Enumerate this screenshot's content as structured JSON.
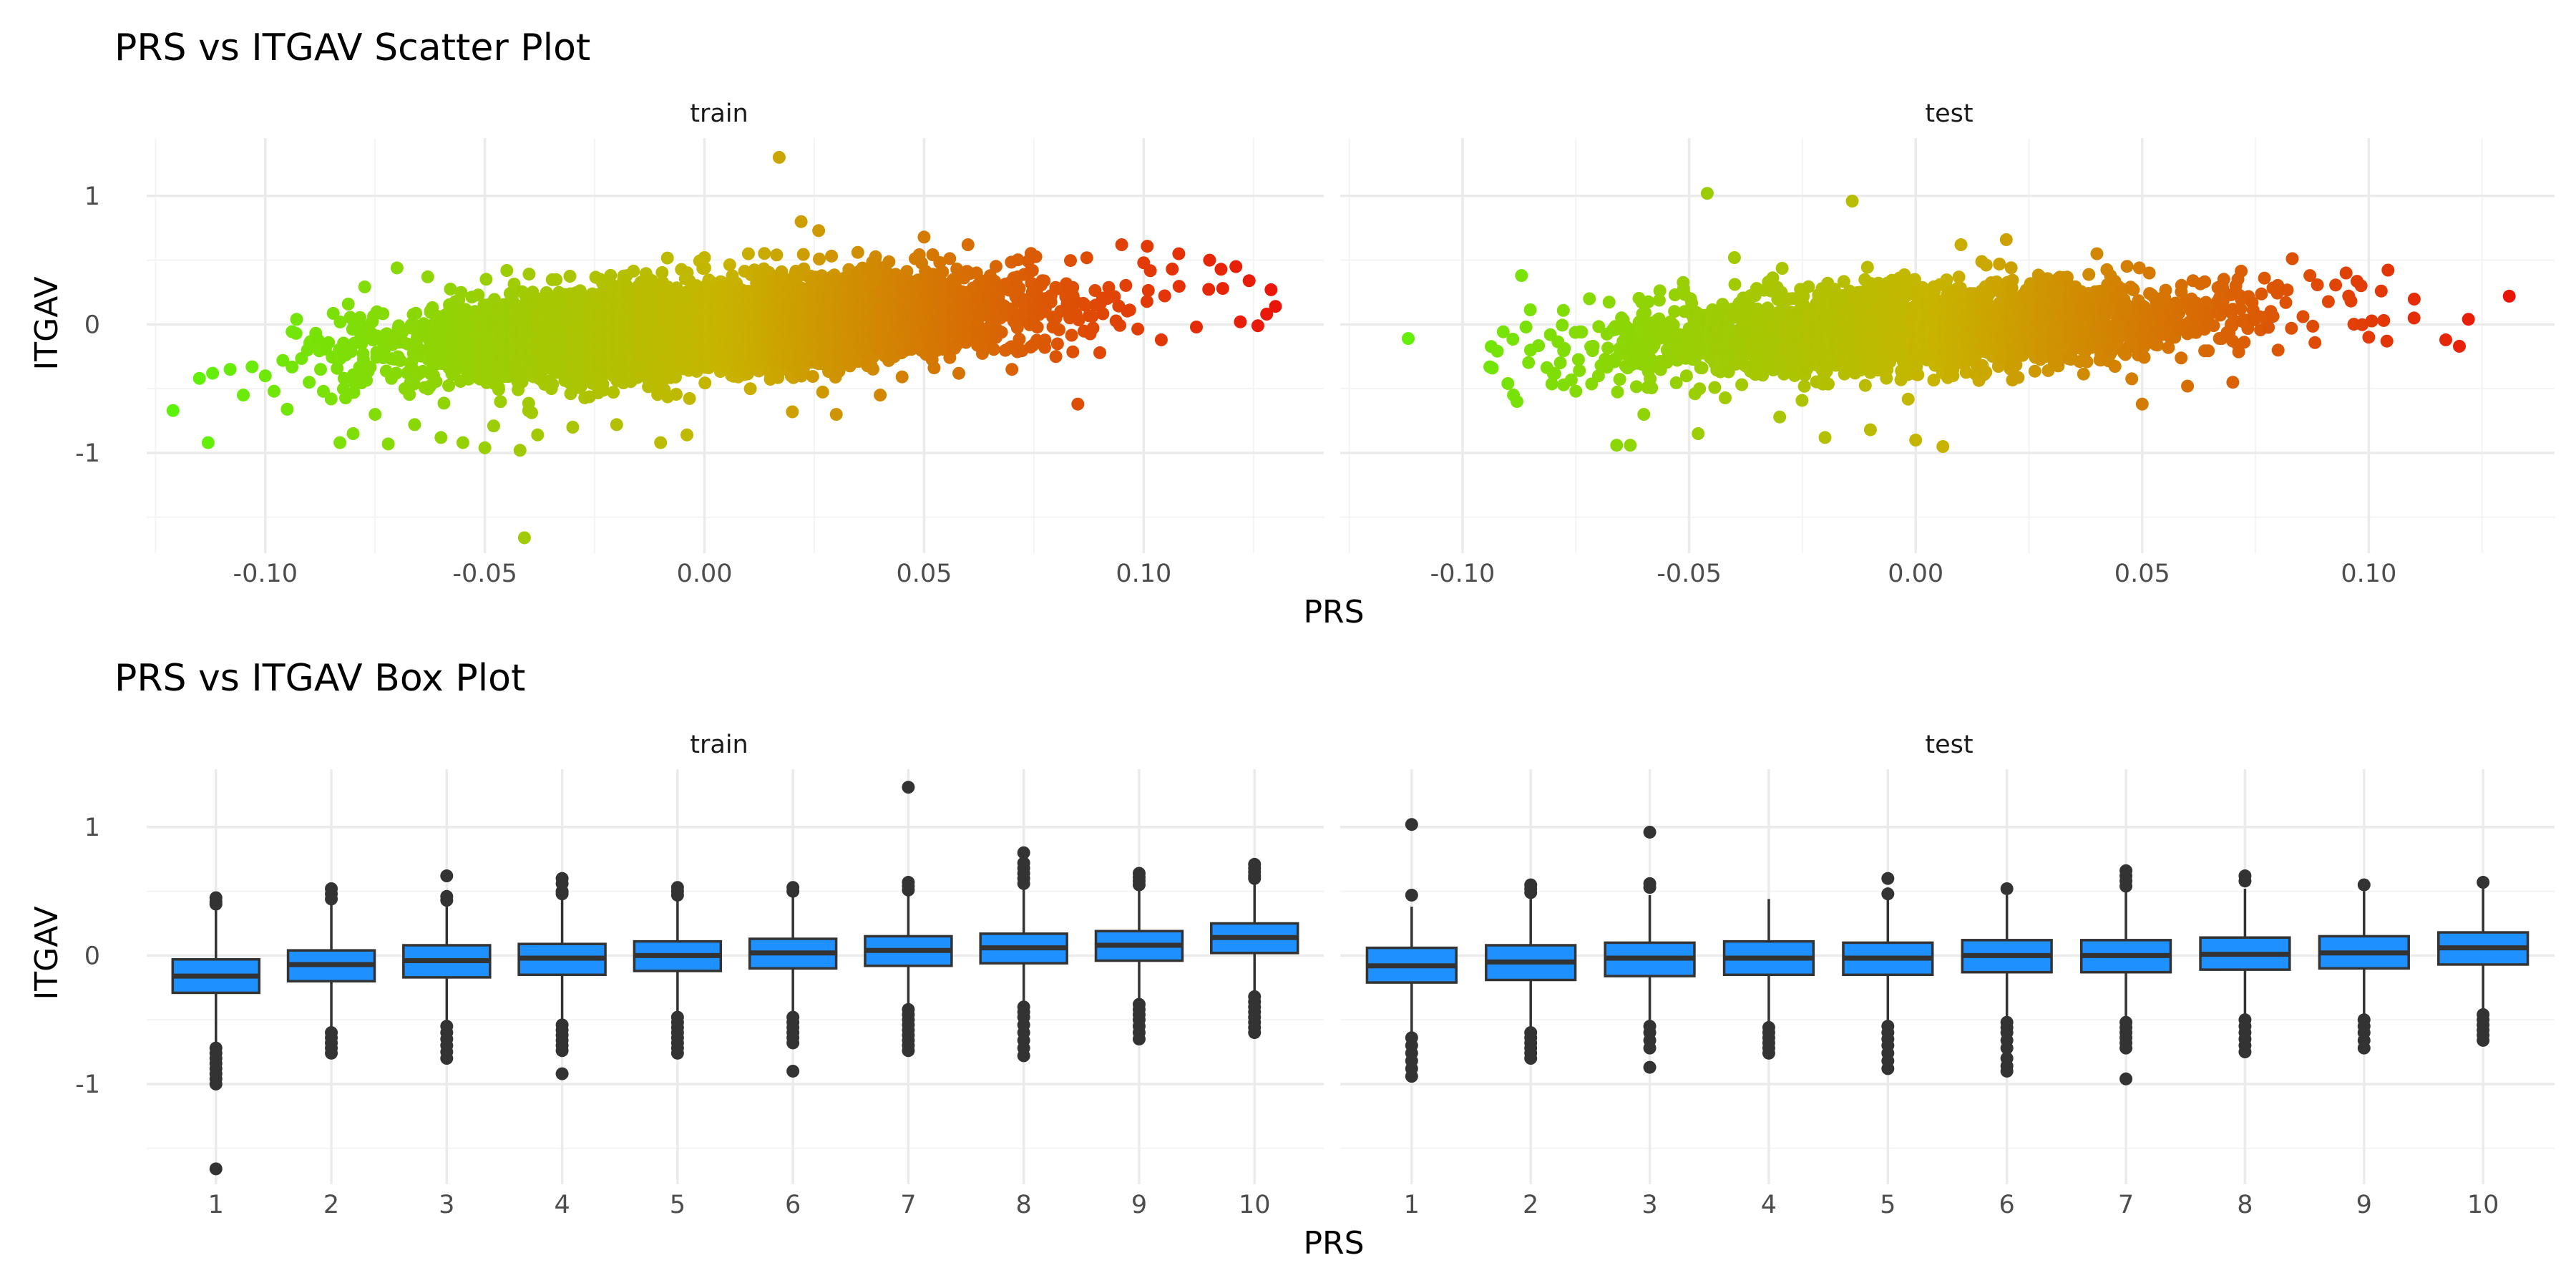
{
  "colors": {
    "low": "#5df20a",
    "mid": "#c8b400",
    "high": "#ea1509",
    "box_fill": "#1e90ff",
    "box_line": "#333333"
  },
  "chart_data": [
    {
      "type": "scatter",
      "title": "PRS vs ITGAV Scatter Plot",
      "xlabel": "PRS",
      "ylabel": "ITGAV",
      "xlim": [
        -0.127,
        0.141
      ],
      "ylim": [
        -1.78,
        1.45
      ],
      "xticks": [
        -0.1,
        -0.05,
        0.0,
        0.05,
        0.1
      ],
      "xtick_labels": [
        "-0.10",
        "-0.05",
        "0.00",
        "0.05",
        "0.10"
      ],
      "yticks": [
        -1,
        0,
        1
      ],
      "ytick_labels": [
        "-1",
        "0",
        "1"
      ],
      "color_by": "x",
      "color_range": [
        -0.12,
        0.13
      ],
      "grid": true,
      "legend": "none",
      "facets": [
        {
          "name": "train",
          "trend": {
            "slope": 2.4,
            "intercept": -0.02,
            "spread": 0.17,
            "xmean": 0.0,
            "xsd": 0.034
          },
          "points": [
            {
              "x": -0.121,
              "y": -0.67
            },
            {
              "x": -0.113,
              "y": -0.92
            },
            {
              "x": -0.115,
              "y": -0.42
            },
            {
              "x": -0.112,
              "y": -0.38
            },
            {
              "x": -0.108,
              "y": -0.35
            },
            {
              "x": -0.105,
              "y": -0.55
            },
            {
              "x": -0.103,
              "y": -0.33
            },
            {
              "x": -0.1,
              "y": -0.4
            },
            {
              "x": -0.098,
              "y": -0.52
            },
            {
              "x": -0.096,
              "y": -0.28
            },
            {
              "x": -0.095,
              "y": -0.66
            },
            {
              "x": -0.093,
              "y": -0.07
            },
            {
              "x": -0.09,
              "y": -0.45
            },
            {
              "x": -0.088,
              "y": -0.12
            },
            {
              "x": -0.085,
              "y": -0.58
            },
            {
              "x": -0.083,
              "y": -0.92
            },
            {
              "x": -0.08,
              "y": -0.85
            },
            {
              "x": -0.078,
              "y": -0.1
            },
            {
              "x": -0.075,
              "y": -0.7
            },
            {
              "x": -0.072,
              "y": -0.93
            },
            {
              "x": -0.07,
              "y": 0.44
            },
            {
              "x": -0.066,
              "y": -0.78
            },
            {
              "x": -0.063,
              "y": 0.37
            },
            {
              "x": -0.06,
              "y": -0.88
            },
            {
              "x": -0.058,
              "y": 0.12
            },
            {
              "x": -0.055,
              "y": -0.92
            },
            {
              "x": -0.05,
              "y": -0.96
            },
            {
              "x": -0.048,
              "y": -0.79
            },
            {
              "x": -0.045,
              "y": 0.42
            },
            {
              "x": -0.042,
              "y": -0.98
            },
            {
              "x": -0.041,
              "y": -1.66
            },
            {
              "x": -0.038,
              "y": -0.86
            },
            {
              "x": -0.03,
              "y": -0.8
            },
            {
              "x": -0.02,
              "y": -0.78
            },
            {
              "x": -0.01,
              "y": -0.92
            },
            {
              "x": -0.004,
              "y": -0.86
            },
            {
              "x": 0.0,
              "y": 0.52
            },
            {
              "x": 0.01,
              "y": 0.55
            },
            {
              "x": 0.017,
              "y": 1.3
            },
            {
              "x": 0.02,
              "y": -0.68
            },
            {
              "x": 0.022,
              "y": 0.8
            },
            {
              "x": 0.026,
              "y": 0.73
            },
            {
              "x": 0.03,
              "y": -0.7
            },
            {
              "x": 0.04,
              "y": -0.55
            },
            {
              "x": 0.05,
              "y": 0.68
            },
            {
              "x": 0.06,
              "y": 0.62
            },
            {
              "x": 0.07,
              "y": -0.35
            },
            {
              "x": 0.08,
              "y": -0.25
            },
            {
              "x": 0.085,
              "y": -0.62
            },
            {
              "x": 0.09,
              "y": -0.22
            },
            {
              "x": 0.095,
              "y": 0.62
            },
            {
              "x": 0.1,
              "y": 0.48
            },
            {
              "x": 0.104,
              "y": -0.12
            },
            {
              "x": 0.108,
              "y": 0.55
            },
            {
              "x": 0.112,
              "y": -0.02
            },
            {
              "x": 0.115,
              "y": 0.5
            },
            {
              "x": 0.118,
              "y": 0.28
            },
            {
              "x": 0.121,
              "y": 0.45
            },
            {
              "x": 0.122,
              "y": 0.02
            },
            {
              "x": 0.124,
              "y": 0.34
            },
            {
              "x": 0.126,
              "y": -0.01
            },
            {
              "x": 0.128,
              "y": 0.08
            },
            {
              "x": 0.129,
              "y": 0.27
            },
            {
              "x": 0.13,
              "y": 0.14
            }
          ]
        },
        {
          "name": "test",
          "trend": {
            "slope": 1.7,
            "intercept": -0.03,
            "spread": 0.16,
            "xmean": 0.0,
            "xsd": 0.033
          },
          "points": [
            {
              "x": -0.112,
              "y": -0.11
            },
            {
              "x": -0.094,
              "y": -0.33
            },
            {
              "x": -0.09,
              "y": -0.46
            },
            {
              "x": -0.088,
              "y": -0.6
            },
            {
              "x": -0.087,
              "y": 0.38
            },
            {
              "x": -0.086,
              "y": -0.02
            },
            {
              "x": -0.085,
              "y": -0.2
            },
            {
              "x": -0.08,
              "y": -0.38
            },
            {
              "x": -0.075,
              "y": -0.52
            },
            {
              "x": -0.072,
              "y": 0.2
            },
            {
              "x": -0.07,
              "y": -0.4
            },
            {
              "x": -0.066,
              "y": -0.94
            },
            {
              "x": -0.063,
              "y": -0.94
            },
            {
              "x": -0.06,
              "y": -0.7
            },
            {
              "x": -0.048,
              "y": -0.85
            },
            {
              "x": -0.046,
              "y": 1.02
            },
            {
              "x": -0.04,
              "y": 0.52
            },
            {
              "x": -0.03,
              "y": -0.72
            },
            {
              "x": -0.02,
              "y": -0.88
            },
            {
              "x": -0.014,
              "y": 0.96
            },
            {
              "x": -0.01,
              "y": -0.82
            },
            {
              "x": 0.0,
              "y": -0.9
            },
            {
              "x": 0.006,
              "y": -0.95
            },
            {
              "x": 0.01,
              "y": 0.62
            },
            {
              "x": 0.02,
              "y": 0.66
            },
            {
              "x": 0.04,
              "y": 0.55
            },
            {
              "x": 0.05,
              "y": -0.62
            },
            {
              "x": 0.06,
              "y": -0.48
            },
            {
              "x": 0.07,
              "y": -0.45
            },
            {
              "x": 0.08,
              "y": -0.2
            },
            {
              "x": 0.087,
              "y": 0.38
            },
            {
              "x": 0.095,
              "y": 0.4
            },
            {
              "x": 0.1,
              "y": -0.1
            },
            {
              "x": 0.104,
              "y": -0.13
            },
            {
              "x": 0.11,
              "y": 0.05
            },
            {
              "x": 0.117,
              "y": -0.12
            },
            {
              "x": 0.12,
              "y": -0.17
            },
            {
              "x": 0.122,
              "y": 0.04
            },
            {
              "x": 0.131,
              "y": 0.22
            }
          ]
        }
      ]
    },
    {
      "type": "box",
      "title": "PRS vs ITGAV Box Plot",
      "xlabel": "PRS",
      "ylabel": "ITGAV",
      "categories": [
        "1",
        "2",
        "3",
        "4",
        "5",
        "6",
        "7",
        "8",
        "9",
        "10"
      ],
      "ylim": [
        -1.78,
        1.45
      ],
      "yticks": [
        -1,
        0,
        1
      ],
      "ytick_labels": [
        "-1",
        "0",
        "1"
      ],
      "grid": true,
      "legend": "none",
      "facets": [
        {
          "name": "train",
          "boxes": [
            {
              "q1": -0.29,
              "median": -0.16,
              "q3": -0.03,
              "lower": -0.68,
              "upper": 0.35,
              "outliers": [
                0.45,
                0.42,
                0.4,
                -0.72,
                -0.76,
                -0.8,
                -0.84,
                -0.88,
                -0.92,
                -0.96,
                -1.0,
                -1.66
              ]
            },
            {
              "q1": -0.2,
              "median": -0.07,
              "q3": 0.04,
              "lower": -0.56,
              "upper": 0.4,
              "outliers": [
                0.52,
                0.48,
                0.44,
                -0.6,
                -0.64,
                -0.68,
                -0.72,
                -0.76
              ]
            },
            {
              "q1": -0.17,
              "median": -0.04,
              "q3": 0.08,
              "lower": -0.52,
              "upper": 0.42,
              "outliers": [
                0.62,
                0.46,
                0.43,
                -0.55,
                -0.6,
                -0.65,
                -0.7,
                -0.75,
                -0.8
              ]
            },
            {
              "q1": -0.15,
              "median": -0.02,
              "q3": 0.09,
              "lower": -0.5,
              "upper": 0.45,
              "outliers": [
                0.6,
                0.56,
                0.5,
                0.48,
                -0.54,
                -0.58,
                -0.62,
                -0.66,
                -0.7,
                -0.74,
                -0.92
              ]
            },
            {
              "q1": -0.12,
              "median": 0.0,
              "q3": 0.11,
              "lower": -0.46,
              "upper": 0.44,
              "outliers": [
                0.53,
                0.5,
                0.47,
                -0.48,
                -0.52,
                -0.56,
                -0.6,
                -0.64,
                -0.68,
                -0.72,
                -0.76
              ]
            },
            {
              "q1": -0.1,
              "median": 0.02,
              "q3": 0.13,
              "lower": -0.44,
              "upper": 0.46,
              "outliers": [
                0.53,
                0.5,
                -0.48,
                -0.52,
                -0.56,
                -0.6,
                -0.64,
                -0.68,
                -0.9
              ]
            },
            {
              "q1": -0.08,
              "median": 0.04,
              "q3": 0.15,
              "lower": -0.4,
              "upper": 0.47,
              "outliers": [
                1.31,
                0.57,
                0.54,
                0.51,
                -0.42,
                -0.46,
                -0.5,
                -0.54,
                -0.58,
                -0.62,
                -0.66,
                -0.7,
                -0.74
              ]
            },
            {
              "q1": -0.06,
              "median": 0.06,
              "q3": 0.17,
              "lower": -0.38,
              "upper": 0.52,
              "outliers": [
                0.8,
                0.72,
                0.68,
                0.64,
                0.6,
                0.56,
                -0.4,
                -0.44,
                -0.48,
                -0.54,
                -0.6,
                -0.66,
                -0.72,
                -0.78
              ]
            },
            {
              "q1": -0.04,
              "median": 0.08,
              "q3": 0.19,
              "lower": -0.36,
              "upper": 0.53,
              "outliers": [
                0.64,
                0.61,
                0.58,
                0.55,
                -0.38,
                -0.42,
                -0.46,
                -0.5,
                -0.55,
                -0.6,
                -0.65
              ]
            },
            {
              "q1": 0.02,
              "median": 0.14,
              "q3": 0.25,
              "lower": -0.3,
              "upper": 0.58,
              "outliers": [
                0.71,
                0.68,
                0.65,
                0.62,
                0.6,
                -0.32,
                -0.36,
                -0.4,
                -0.44,
                -0.48,
                -0.52,
                -0.56,
                -0.6
              ]
            }
          ]
        },
        {
          "name": "test",
          "boxes": [
            {
              "q1": -0.21,
              "median": -0.08,
              "q3": 0.06,
              "lower": -0.6,
              "upper": 0.38,
              "outliers": [
                1.02,
                0.47,
                -0.64,
                -0.7,
                -0.76,
                -0.82,
                -0.88,
                -0.94
              ]
            },
            {
              "q1": -0.19,
              "median": -0.05,
              "q3": 0.08,
              "lower": -0.57,
              "upper": 0.44,
              "outliers": [
                0.55,
                0.52,
                0.49,
                -0.6,
                -0.64,
                -0.68,
                -0.72,
                -0.76,
                -0.8
              ]
            },
            {
              "q1": -0.16,
              "median": -0.02,
              "q3": 0.1,
              "lower": -0.52,
              "upper": 0.47,
              "outliers": [
                0.96,
                0.56,
                0.53,
                -0.55,
                -0.6,
                -0.66,
                -0.72,
                -0.87
              ]
            },
            {
              "q1": -0.15,
              "median": -0.02,
              "q3": 0.11,
              "lower": -0.54,
              "upper": 0.44,
              "outliers": [
                -0.56,
                -0.6,
                -0.64,
                -0.68,
                -0.72,
                -0.76
              ]
            },
            {
              "q1": -0.15,
              "median": -0.02,
              "q3": 0.1,
              "lower": -0.53,
              "upper": 0.46,
              "outliers": [
                0.6,
                0.48,
                -0.55,
                -0.6,
                -0.65,
                -0.7,
                -0.76,
                -0.82,
                -0.88
              ]
            },
            {
              "q1": -0.13,
              "median": 0.0,
              "q3": 0.12,
              "lower": -0.5,
              "upper": 0.47,
              "outliers": [
                0.52,
                -0.52,
                -0.56,
                -0.6,
                -0.66,
                -0.72,
                -0.8,
                -0.86,
                -0.9
              ]
            },
            {
              "q1": -0.13,
              "median": 0.0,
              "q3": 0.12,
              "lower": -0.5,
              "upper": 0.5,
              "outliers": [
                0.66,
                0.62,
                0.58,
                0.54,
                -0.52,
                -0.56,
                -0.6,
                -0.64,
                -0.68,
                -0.72,
                -0.96
              ]
            },
            {
              "q1": -0.11,
              "median": 0.01,
              "q3": 0.14,
              "lower": -0.48,
              "upper": 0.52,
              "outliers": [
                0.62,
                0.58,
                -0.5,
                -0.55,
                -0.6,
                -0.65,
                -0.7,
                -0.75
              ]
            },
            {
              "q1": -0.1,
              "median": 0.02,
              "q3": 0.15,
              "lower": -0.47,
              "upper": 0.5,
              "outliers": [
                0.55,
                -0.5,
                -0.55,
                -0.6,
                -0.66,
                -0.72
              ]
            },
            {
              "q1": -0.07,
              "median": 0.06,
              "q3": 0.18,
              "lower": -0.44,
              "upper": 0.54,
              "outliers": [
                0.57,
                -0.46,
                -0.5,
                -0.54,
                -0.58,
                -0.62,
                -0.66
              ]
            }
          ]
        }
      ]
    }
  ]
}
